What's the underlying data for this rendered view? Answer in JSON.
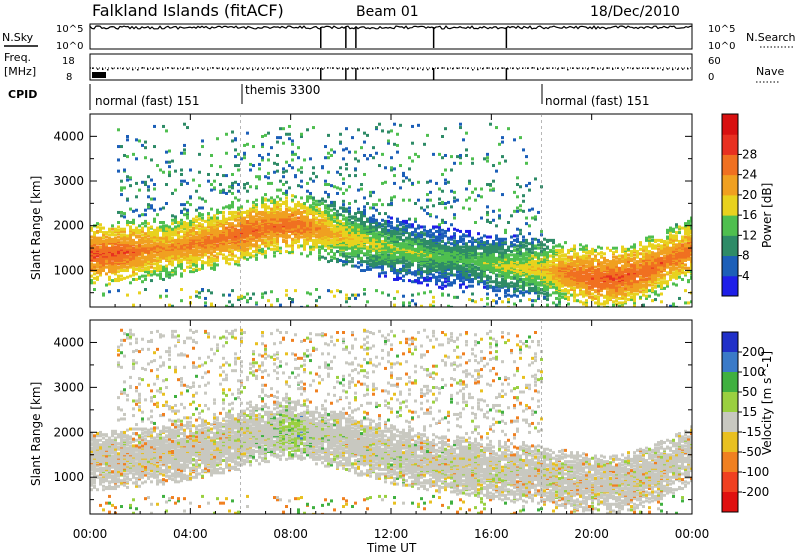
{
  "header": {
    "station": "Falkland Islands (fitACF)",
    "beam": "Beam 01",
    "date": "18/Dec/2010"
  },
  "noise_panel": {
    "left_label": "N.Sky",
    "right_label": "N.Search",
    "ticks": [
      "10^5",
      "10^0"
    ]
  },
  "freq_panel": {
    "left_label_1": "Freq.",
    "left_label_2": "[MHz]",
    "left_ticks": [
      "18",
      "8"
    ],
    "right_label": "Nave",
    "right_ticks": [
      "60",
      "0"
    ]
  },
  "cpid_panel": {
    "label": "CPID",
    "modes": [
      {
        "name": "normal (fast) 151",
        "start_hour": 0
      },
      {
        "name": "themis 3300",
        "start_hour": 6
      },
      {
        "name": "normal (fast) 151",
        "start_hour": 18
      }
    ]
  },
  "power_panel": {
    "ylabel": "Slant Range [km]",
    "yticks": [
      "1000",
      "2000",
      "3000",
      "4000"
    ],
    "colorbar_title": "Power [dB]",
    "colorbar_ticks": [
      "4",
      "8",
      "12",
      "16",
      "20",
      "24",
      "28"
    ],
    "colors": [
      "#1f1fe8",
      "#1c5fb8",
      "#2e8b67",
      "#4fbf4f",
      "#e8d21e",
      "#f0a020",
      "#f07020",
      "#e83020",
      "#d81010"
    ]
  },
  "velocity_panel": {
    "ylabel": "Slant Range [km]",
    "yticks": [
      "1000",
      "2000",
      "3000",
      "4000"
    ],
    "colorbar_title": "Velocity [m s^-1]",
    "colorbar_ticks": [
      "200",
      "100",
      "50",
      "15",
      "-15",
      "-50",
      "-100",
      "-200"
    ],
    "colors": [
      "#2030c8",
      "#3a7ac8",
      "#40b040",
      "#9ad040",
      "#c8c8c0",
      "#e8c020",
      "#f08020",
      "#f04020",
      "#e01010"
    ]
  },
  "xaxis": {
    "label": "Time UT",
    "ticks": [
      "00:00",
      "04:00",
      "08:00",
      "12:00",
      "16:00",
      "20:00",
      "00:00"
    ]
  },
  "chart_data": {
    "type": "heatmap",
    "xlabel": "Time UT",
    "ylabel": "Slant Range [km]",
    "xlim_hours": [
      0,
      24
    ],
    "ylim_km": [
      180,
      4500
    ],
    "power_band": {
      "hours": [
        0,
        1,
        2,
        3,
        4,
        5,
        6,
        7,
        8,
        9,
        10,
        11,
        12,
        13,
        14,
        15,
        16,
        17,
        18,
        19,
        20,
        21,
        22,
        23,
        24
      ],
      "center_km": [
        1350,
        1400,
        1450,
        1500,
        1600,
        1700,
        1850,
        2000,
        2050,
        1950,
        1800,
        1650,
        1500,
        1400,
        1300,
        1250,
        1150,
        1100,
        1050,
        950,
        850,
        850,
        1000,
        1250,
        1500
      ],
      "peak_db": [
        28,
        28,
        26,
        24,
        25,
        26,
        27,
        26,
        27,
        24,
        20,
        18,
        16,
        16,
        14,
        14,
        16,
        18,
        20,
        26,
        28,
        28,
        27,
        26,
        26
      ]
    },
    "velocity_band": {
      "hours": [
        0,
        2,
        4,
        6,
        8,
        10,
        12,
        14,
        16,
        18,
        20,
        22,
        24
      ],
      "center_km": [
        1400,
        1500,
        1650,
        1900,
        2050,
        1800,
        1550,
        1350,
        1200,
        1000,
        850,
        900,
        1300
      ],
      "typical_velocity_ms": [
        -20,
        -30,
        -15,
        -10,
        60,
        -5,
        0,
        -5,
        -10,
        -20,
        -30,
        -25,
        -20
      ]
    }
  }
}
